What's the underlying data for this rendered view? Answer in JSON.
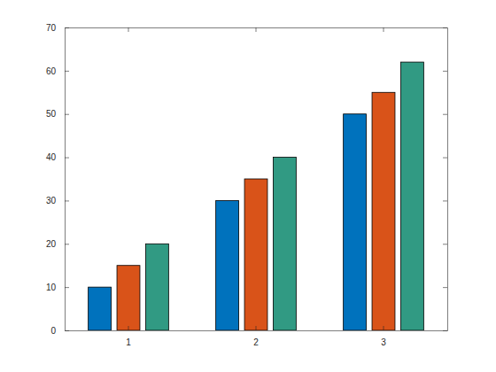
{
  "chart_data": {
    "type": "bar",
    "categories": [
      "1",
      "2",
      "3"
    ],
    "series": [
      {
        "color": "#0072bd",
        "values": [
          10,
          30,
          50
        ]
      },
      {
        "color": "#d95319",
        "values": [
          15,
          35,
          55
        ]
      },
      {
        "color": "#319a83",
        "values": [
          20,
          40,
          62
        ]
      }
    ],
    "ylim": [
      0,
      70
    ],
    "yticks": [
      0,
      10,
      20,
      30,
      40,
      50,
      60,
      70
    ]
  }
}
